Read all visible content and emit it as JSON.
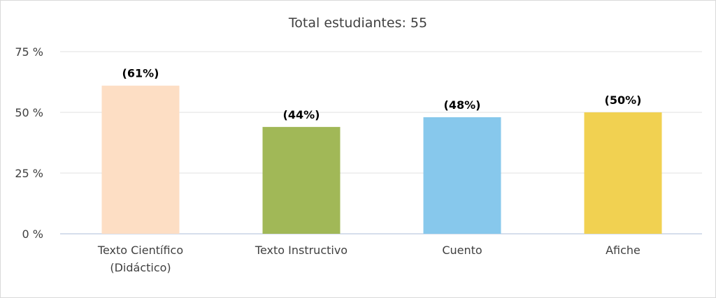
{
  "chart_data": {
    "type": "bar",
    "title": "Total estudiantes: 55",
    "categories": [
      [
        "Texto Científico",
        "(Didáctico)"
      ],
      [
        "Texto Instructivo"
      ],
      [
        "Cuento"
      ],
      [
        "Afiche"
      ]
    ],
    "values": [
      61,
      44,
      48,
      50
    ],
    "data_labels": [
      "(61%)",
      "(44%)",
      "(48%)",
      "(50%)"
    ],
    "colors": [
      "#fddec4",
      "#a1b857",
      "#87c8ec",
      "#f1d151"
    ],
    "yticks": [
      0,
      25,
      50,
      75
    ],
    "ytick_labels": [
      "0 %",
      "25 %",
      "50 %",
      "75 %"
    ],
    "ylim": [
      0,
      75
    ],
    "grid": true,
    "legend": "none"
  }
}
